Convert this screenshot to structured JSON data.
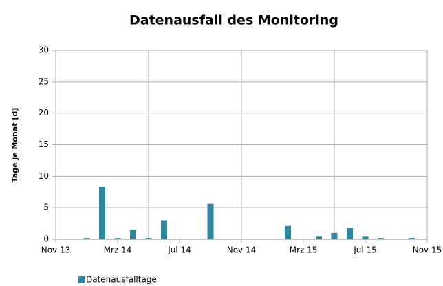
{
  "chart_data": {
    "type": "bar",
    "title": "Datenausfall des Monitoring",
    "y_label": "Tage je Monat  [d]",
    "categories": [
      "Nov 13",
      null,
      null,
      null,
      "Mrz 14",
      null,
      null,
      null,
      "Jul 14",
      null,
      null,
      null,
      "Nov 14",
      null,
      null,
      null,
      "Mrz 15",
      null,
      null,
      null,
      "Jul 15",
      null,
      null,
      null,
      "Nov 15"
    ],
    "series": [
      {
        "name": "Datenausfalltage",
        "color": "#31859c",
        "values": [
          0,
          0,
          0.2,
          8.3,
          0.2,
          1.5,
          0.2,
          3.0,
          0,
          0,
          5.6,
          0,
          0,
          0,
          0,
          2.1,
          0,
          0.4,
          1.0,
          1.8,
          0.4,
          0.2,
          0,
          0.2,
          0
        ]
      }
    ],
    "ylim": [
      0,
      30
    ],
    "yticks": [
      0,
      5,
      10,
      15,
      20,
      25,
      30
    ],
    "grid": true
  }
}
